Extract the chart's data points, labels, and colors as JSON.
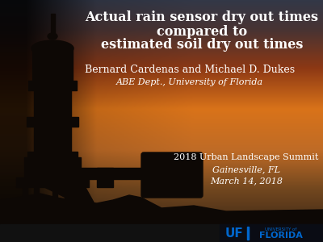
{
  "title_line1": "Actual rain sensor dry out times",
  "title_line2": "compared to",
  "title_line3": "estimated soil dry out times",
  "author": "Bernard Cardenas and Michael D. Dukes",
  "affiliation": "ABE Dept., University of Florida",
  "event_line1": "2018 Urban Landscape Summit",
  "event_line2": "Gainesville, FL",
  "event_line3": "March 14, 2018",
  "text_color": "#ffffff",
  "bottom_bar_color": "#111111",
  "uf_blue": "#0066cc",
  "silhouette_color": "#0d0805",
  "title_fontsize": 11.5,
  "author_fontsize": 9,
  "affil_fontsize": 8,
  "event_fontsize": 8
}
